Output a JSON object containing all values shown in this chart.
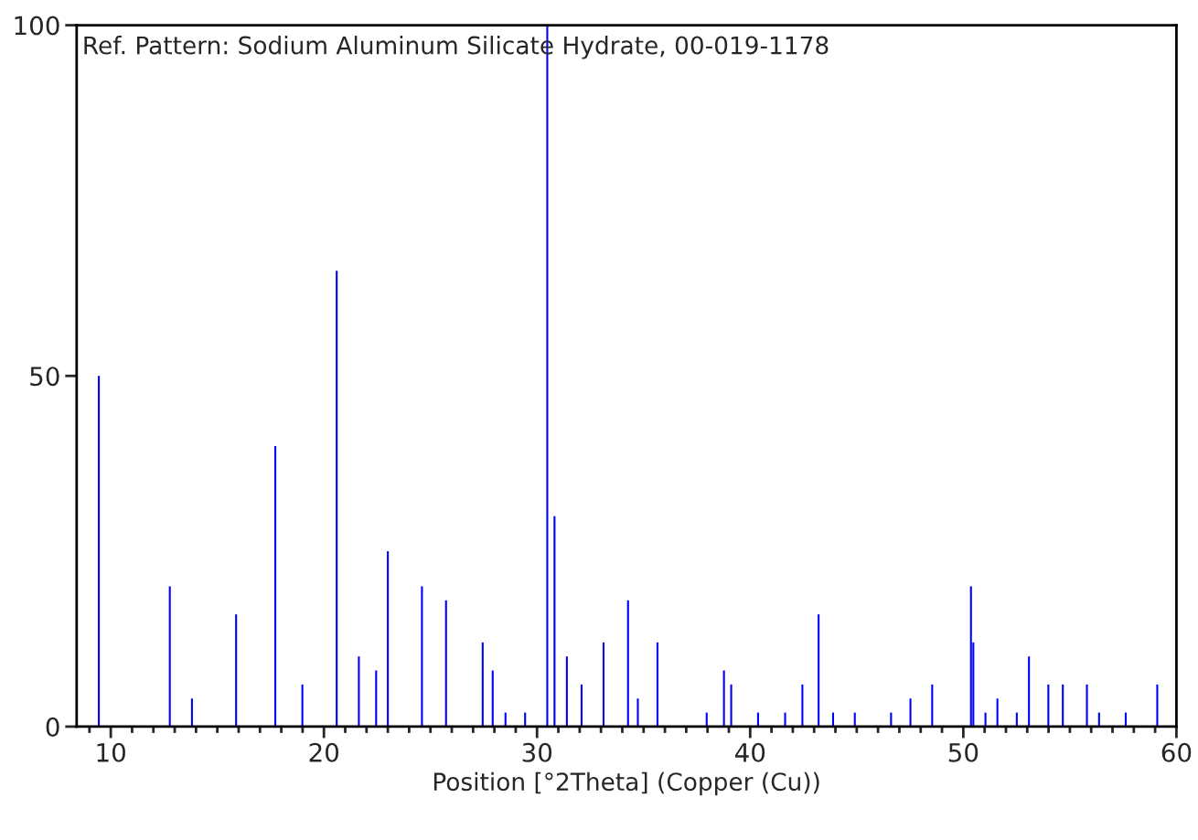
{
  "chart_data": {
    "type": "bar",
    "title": "Ref. Pattern: Sodium Aluminum Silicate Hydrate, 00-019-1178",
    "xlabel": "Position [°2Theta] (Copper (Cu))",
    "x": [
      9.44,
      12.77,
      13.81,
      15.88,
      17.72,
      18.99,
      20.6,
      21.64,
      22.45,
      23.0,
      24.6,
      25.73,
      27.45,
      27.92,
      28.52,
      29.44,
      30.48,
      30.82,
      31.4,
      32.09,
      33.12,
      34.27,
      34.73,
      35.65,
      37.96,
      38.77,
      39.11,
      40.37,
      41.64,
      42.45,
      43.21,
      43.89,
      44.91,
      46.61,
      47.52,
      48.54,
      50.36,
      50.47,
      51.04,
      51.6,
      52.51,
      53.08,
      53.99,
      54.67,
      55.8,
      56.37,
      57.62,
      59.1
    ],
    "values": [
      50,
      20,
      4,
      16,
      40,
      6,
      65,
      10,
      8,
      25,
      20,
      18,
      12,
      8,
      2,
      2,
      100,
      30,
      10,
      6,
      12,
      18,
      4,
      12,
      2,
      8,
      6,
      2,
      2,
      6,
      16,
      2,
      2,
      2,
      4,
      6,
      20,
      12,
      2,
      4,
      2,
      10,
      6,
      6,
      6,
      2,
      2,
      6
    ],
    "color": "#0000ff",
    "xlim": [
      8.4,
      60
    ],
    "xticks": [
      {
        "value": 9,
        "label": null
      },
      10,
      {
        "value": 11,
        "label": null
      },
      {
        "value": 12,
        "label": null
      },
      {
        "value": 13,
        "label": null
      },
      {
        "value": 14,
        "label": null
      },
      {
        "value": 15,
        "label": null
      },
      {
        "value": 16,
        "label": null
      },
      {
        "value": 17,
        "label": null
      },
      {
        "value": 18,
        "label": null
      },
      {
        "value": 19,
        "label": null
      },
      20,
      {
        "value": 21,
        "label": null
      },
      {
        "value": 22,
        "label": null
      },
      {
        "value": 23,
        "label": null
      },
      {
        "value": 24,
        "label": null
      },
      {
        "value": 25,
        "label": null
      },
      {
        "value": 26,
        "label": null
      },
      {
        "value": 27,
        "label": null
      },
      {
        "value": 28,
        "label": null
      },
      {
        "value": 29,
        "label": null
      },
      30,
      {
        "value": 31,
        "label": null
      },
      {
        "value": 32,
        "label": null
      },
      {
        "value": 33,
        "label": null
      },
      {
        "value": 34,
        "label": null
      },
      {
        "value": 35,
        "label": null
      },
      {
        "value": 36,
        "label": null
      },
      {
        "value": 37,
        "label": null
      },
      {
        "value": 38,
        "label": null
      },
      {
        "value": 39,
        "label": null
      },
      40,
      {
        "value": 41,
        "label": null
      },
      {
        "value": 42,
        "label": null
      },
      {
        "value": 43,
        "label": null
      },
      {
        "value": 44,
        "label": null
      },
      {
        "value": 45,
        "label": null
      },
      {
        "value": 46,
        "label": null
      },
      {
        "value": 47,
        "label": null
      },
      {
        "value": 48,
        "label": null
      },
      {
        "value": 49,
        "label": null
      },
      50,
      {
        "value": 51,
        "label": null
      },
      {
        "value": 52,
        "label": null
      },
      {
        "value": 53,
        "label": null
      },
      {
        "value": 54,
        "label": null
      },
      {
        "value": 55,
        "label": null
      },
      {
        "value": 56,
        "label": null
      },
      {
        "value": 57,
        "label": null
      },
      {
        "value": 58,
        "label": null
      },
      {
        "value": 59,
        "label": null
      },
      60
    ],
    "ylim": [
      0,
      100
    ],
    "yticks": [
      0,
      50,
      100
    ],
    "grid": false
  }
}
